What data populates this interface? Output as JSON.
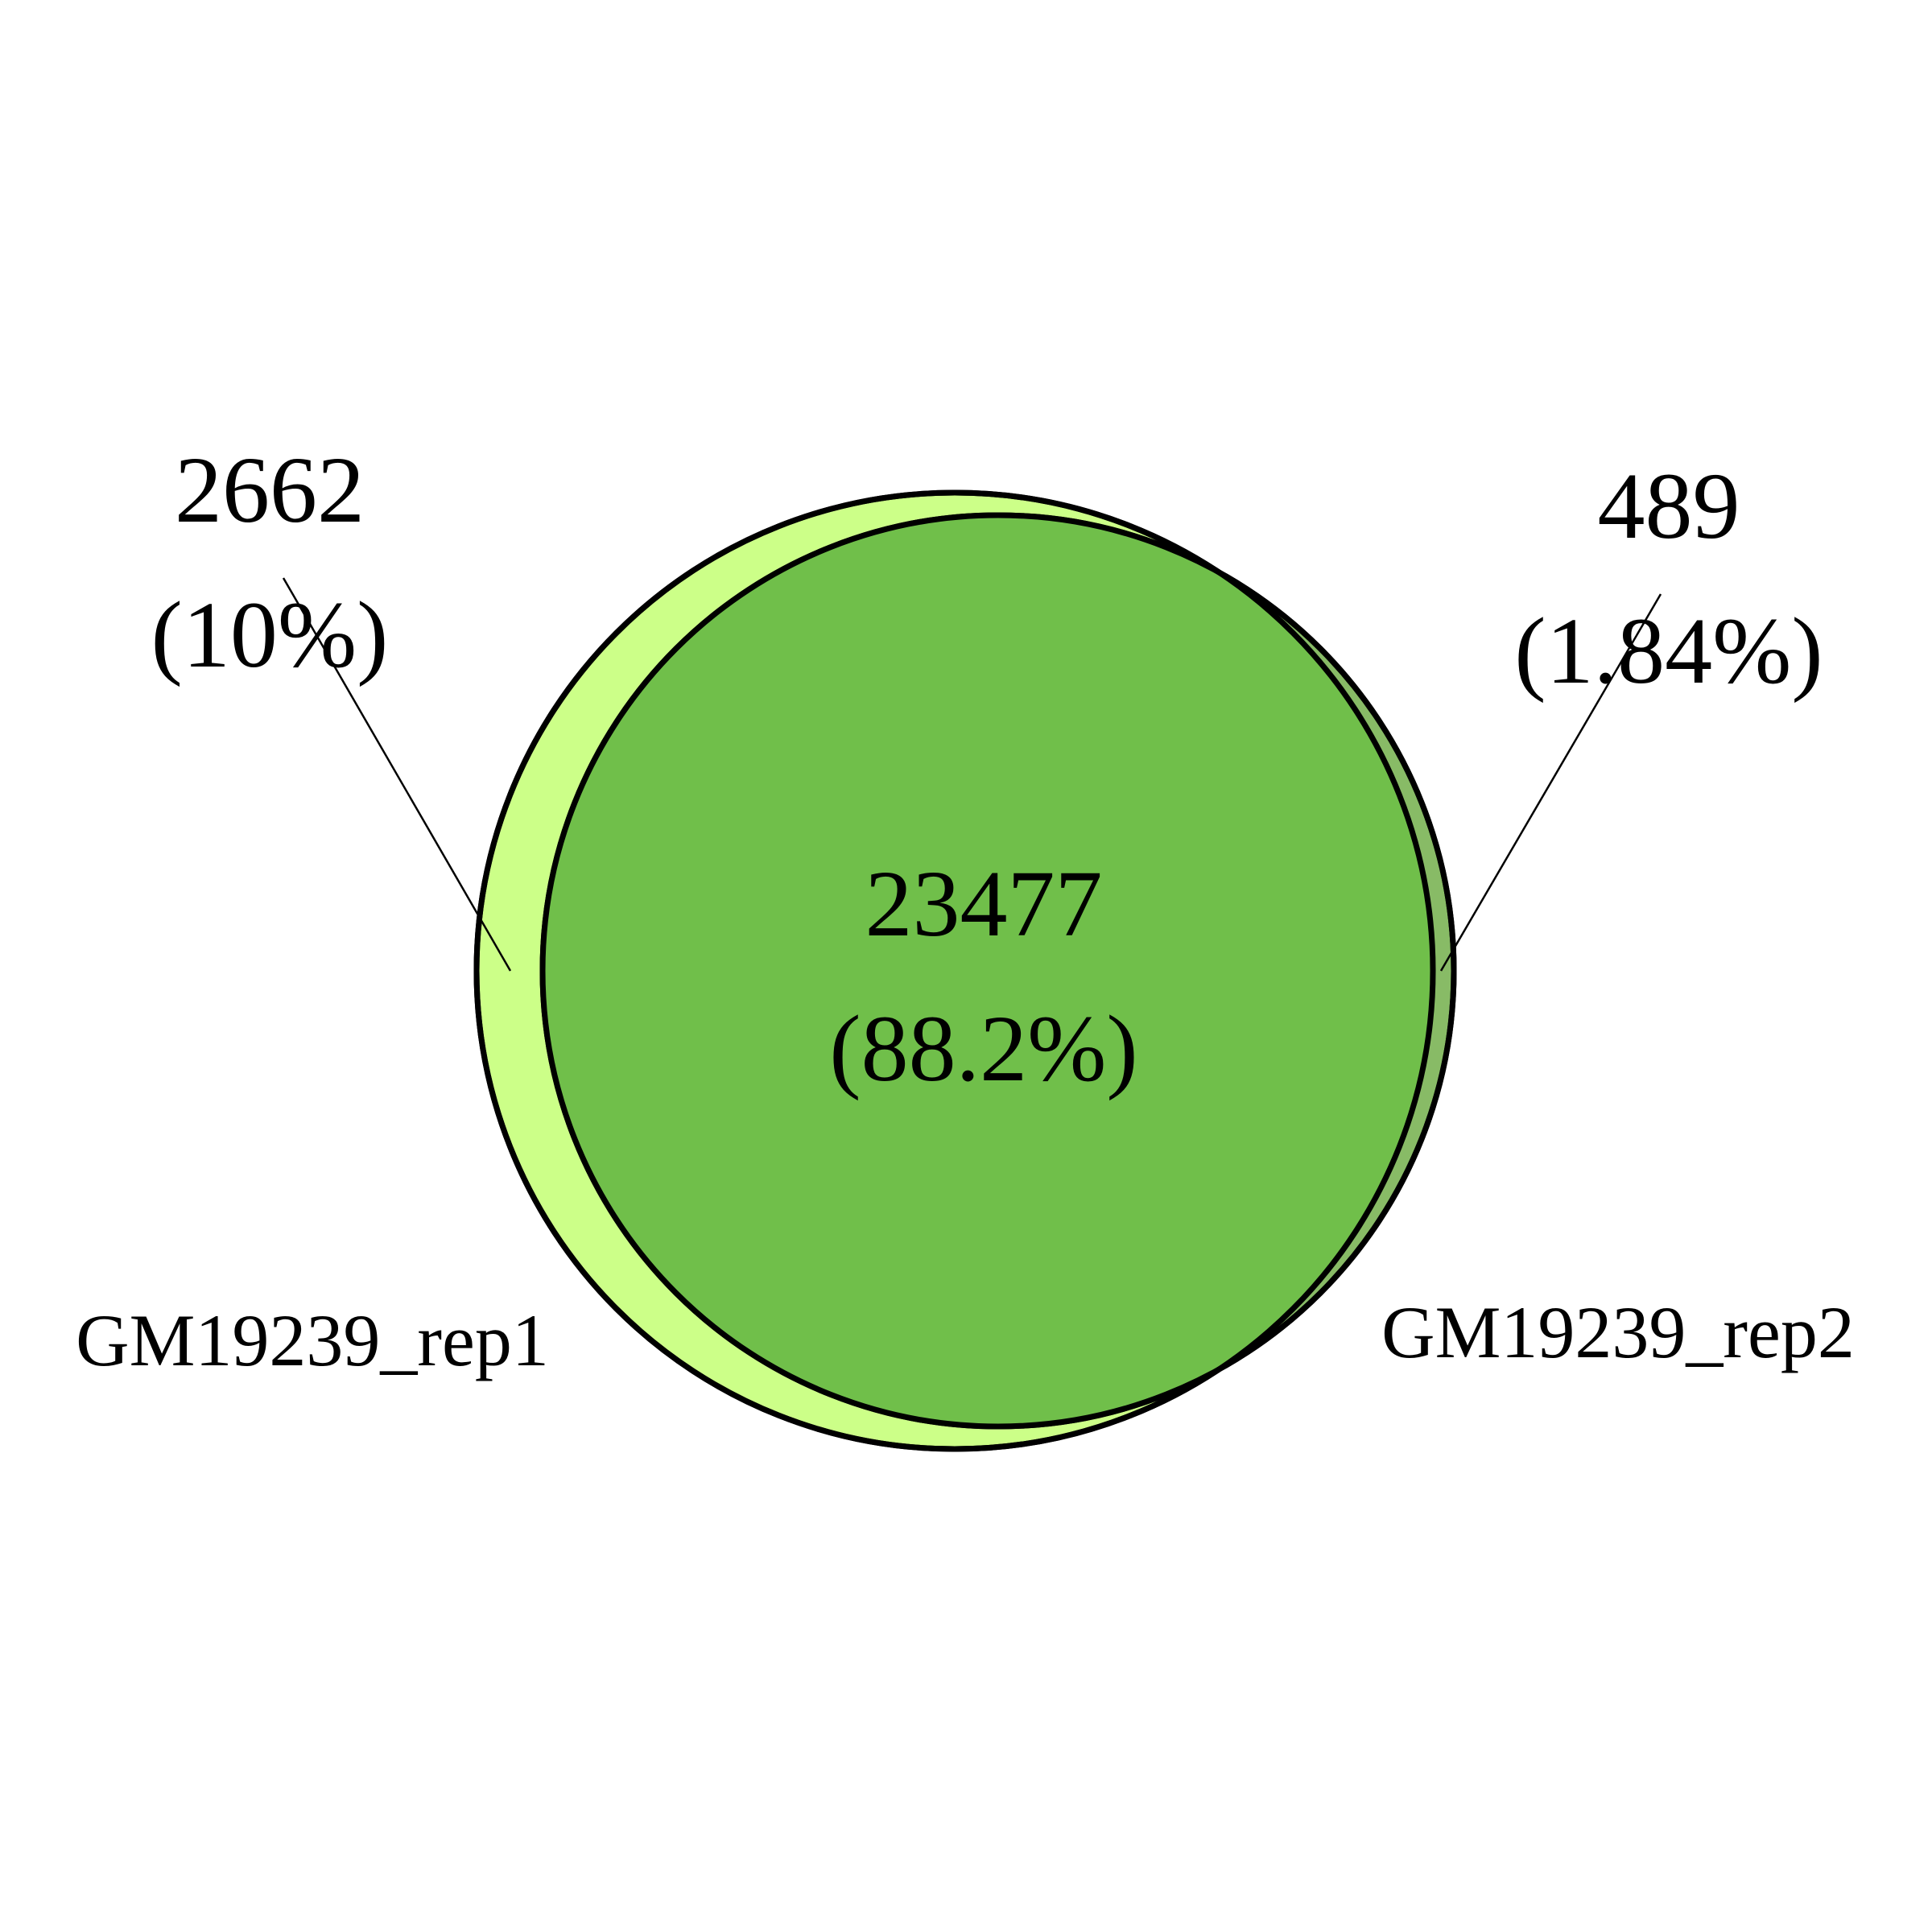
{
  "sets": [
    {
      "name": "GM19239_rep1",
      "fill": "#ccff88",
      "unique_count": "2662",
      "unique_percent": "(10%)"
    },
    {
      "name": "GM19239_rep2",
      "fill": "#88bb66",
      "unique_count": "489",
      "unique_percent": "(1.84%)"
    }
  ],
  "intersection": {
    "fill": "#70bf4a",
    "count": "23477",
    "percent": "(88.2%)"
  },
  "colors": {
    "outline": "#000000",
    "background": "#ffffff"
  }
}
